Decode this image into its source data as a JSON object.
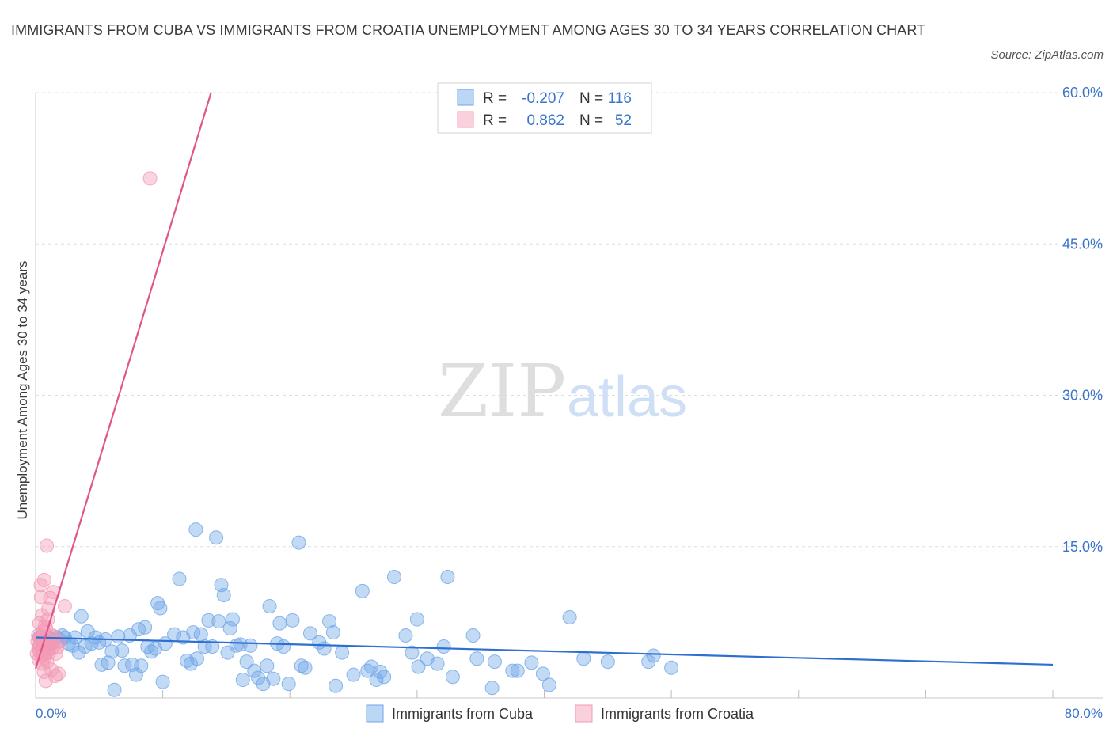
{
  "title": "IMMIGRANTS FROM CUBA VS IMMIGRANTS FROM CROATIA UNEMPLOYMENT AMONG AGES 30 TO 34 YEARS CORRELATION CHART",
  "source": "Source: ZipAtlas.com",
  "watermark": {
    "zip": "ZIP",
    "atlas": "atlas"
  },
  "colors": {
    "cuba": "#6fa6e8",
    "cuba_line": "#2f6fd0",
    "croatia": "#f29ab5",
    "croatia_line": "#e0558a",
    "tick_text": "#3a74c9",
    "grid": "#dddddd"
  },
  "legend": {
    "cuba": {
      "r_label": "R =",
      "r_value": "-0.207",
      "n_label": "N =",
      "n_value": "116"
    },
    "croatia": {
      "r_label": "R =",
      "r_value": "0.862",
      "n_label": "N =",
      "n_value": "52"
    }
  },
  "chart_data": {
    "type": "scatter",
    "ylabel": "Unemployment Among Ages 30 to 34 years",
    "xlabel": "",
    "xlim": [
      0,
      80
    ],
    "ylim": [
      0,
      60
    ],
    "x_tick_labels": [
      "0.0%",
      "80.0%"
    ],
    "y_ticks": [
      15,
      30,
      45,
      60
    ],
    "y_tick_labels": [
      "15.0%",
      "30.0%",
      "45.0%",
      "60.0%"
    ],
    "bottom_legend": [
      "Immigrants from Cuba",
      "Immigrants from Croatia"
    ],
    "series": [
      {
        "name": "Immigrants from Cuba",
        "r": -0.207,
        "n": 116,
        "trendline": {
          "x": [
            0,
            80
          ],
          "y": [
            6.0,
            3.3
          ]
        },
        "points": [
          [
            0.3,
            6.0
          ],
          [
            0.5,
            5.7
          ],
          [
            0.7,
            5.6
          ],
          [
            0.9,
            6.1
          ],
          [
            1.1,
            5.8
          ],
          [
            1.3,
            5.4
          ],
          [
            1.5,
            5.9
          ],
          [
            1.7,
            6.0
          ],
          [
            1.9,
            5.7
          ],
          [
            2.1,
            6.2
          ],
          [
            2.3,
            6.0
          ],
          [
            2.6,
            5.4
          ],
          [
            2.9,
            5.2
          ],
          [
            3.1,
            6.0
          ],
          [
            3.4,
            4.5
          ],
          [
            3.6,
            8.1
          ],
          [
            3.9,
            5.1
          ],
          [
            4.1,
            6.6
          ],
          [
            4.4,
            5.4
          ],
          [
            4.7,
            6.0
          ],
          [
            5.0,
            5.5
          ],
          [
            5.2,
            3.3
          ],
          [
            5.5,
            5.8
          ],
          [
            5.7,
            3.5
          ],
          [
            6.0,
            4.6
          ],
          [
            6.2,
            0.8
          ],
          [
            6.5,
            6.1
          ],
          [
            6.8,
            4.7
          ],
          [
            7.0,
            3.2
          ],
          [
            7.4,
            6.2
          ],
          [
            7.6,
            3.3
          ],
          [
            7.9,
            2.3
          ],
          [
            8.1,
            6.8
          ],
          [
            8.3,
            3.2
          ],
          [
            8.6,
            7.0
          ],
          [
            8.8,
            5.1
          ],
          [
            9.1,
            4.6
          ],
          [
            9.4,
            4.9
          ],
          [
            9.6,
            9.4
          ],
          [
            9.8,
            8.9
          ],
          [
            10.0,
            1.6
          ],
          [
            10.2,
            5.4
          ],
          [
            12.6,
            16.7
          ],
          [
            10.9,
            6.3
          ],
          [
            11.3,
            11.8
          ],
          [
            11.6,
            6.0
          ],
          [
            11.9,
            3.7
          ],
          [
            12.2,
            3.4
          ],
          [
            12.4,
            6.5
          ],
          [
            12.7,
            3.9
          ],
          [
            13.0,
            6.3
          ],
          [
            13.3,
            5.1
          ],
          [
            13.6,
            7.7
          ],
          [
            13.9,
            5.1
          ],
          [
            14.2,
            15.9
          ],
          [
            14.4,
            7.6
          ],
          [
            14.6,
            11.2
          ],
          [
            14.8,
            10.2
          ],
          [
            15.1,
            4.5
          ],
          [
            15.3,
            6.9
          ],
          [
            15.5,
            7.8
          ],
          [
            15.8,
            5.2
          ],
          [
            16.1,
            5.3
          ],
          [
            16.3,
            1.8
          ],
          [
            16.6,
            3.6
          ],
          [
            16.9,
            5.2
          ],
          [
            17.2,
            2.7
          ],
          [
            17.5,
            2.0
          ],
          [
            17.9,
            1.4
          ],
          [
            18.2,
            3.2
          ],
          [
            18.4,
            9.1
          ],
          [
            18.7,
            1.9
          ],
          [
            19.0,
            5.4
          ],
          [
            19.2,
            7.4
          ],
          [
            19.5,
            5.1
          ],
          [
            19.9,
            1.4
          ],
          [
            20.2,
            7.7
          ],
          [
            20.7,
            15.4
          ],
          [
            20.9,
            3.2
          ],
          [
            21.2,
            3.0
          ],
          [
            21.6,
            6.4
          ],
          [
            22.3,
            5.5
          ],
          [
            22.7,
            4.9
          ],
          [
            23.1,
            7.6
          ],
          [
            23.4,
            6.5
          ],
          [
            23.6,
            1.2
          ],
          [
            24.1,
            4.5
          ],
          [
            25.0,
            2.3
          ],
          [
            25.7,
            10.6
          ],
          [
            26.1,
            2.7
          ],
          [
            26.4,
            3.1
          ],
          [
            26.8,
            1.8
          ],
          [
            27.1,
            2.6
          ],
          [
            27.4,
            2.1
          ],
          [
            28.2,
            12.0
          ],
          [
            29.1,
            6.2
          ],
          [
            29.6,
            4.5
          ],
          [
            30.0,
            7.8
          ],
          [
            30.1,
            3.1
          ],
          [
            30.8,
            3.9
          ],
          [
            31.6,
            3.4
          ],
          [
            32.1,
            5.1
          ],
          [
            32.4,
            12.0
          ],
          [
            32.8,
            2.1
          ],
          [
            34.4,
            6.2
          ],
          [
            34.7,
            3.9
          ],
          [
            35.9,
            1.0
          ],
          [
            36.1,
            3.6
          ],
          [
            37.5,
            2.7
          ],
          [
            37.9,
            2.7
          ],
          [
            39.0,
            3.5
          ],
          [
            39.9,
            2.4
          ],
          [
            40.4,
            1.3
          ],
          [
            42.0,
            8.0
          ],
          [
            43.1,
            3.9
          ],
          [
            45.0,
            3.6
          ],
          [
            48.2,
            3.6
          ],
          [
            48.6,
            4.2
          ],
          [
            50.0,
            3.0
          ]
        ]
      },
      {
        "name": "Immigrants from Croatia",
        "r": 0.862,
        "n": 52,
        "trendline": {
          "x": [
            0,
            13.8
          ],
          "y": [
            2.9,
            60.0
          ]
        },
        "points": [
          [
            0.1,
            4.4
          ],
          [
            0.15,
            5.6
          ],
          [
            0.2,
            6.2
          ],
          [
            0.22,
            4.9
          ],
          [
            0.25,
            3.8
          ],
          [
            0.28,
            5.1
          ],
          [
            0.3,
            7.4
          ],
          [
            0.33,
            4.6
          ],
          [
            0.35,
            5.3
          ],
          [
            0.38,
            6.0
          ],
          [
            0.4,
            11.2
          ],
          [
            0.42,
            10.0
          ],
          [
            0.45,
            5.9
          ],
          [
            0.48,
            4.2
          ],
          [
            0.5,
            8.2
          ],
          [
            0.52,
            5.5
          ],
          [
            0.55,
            3.4
          ],
          [
            0.58,
            6.6
          ],
          [
            0.6,
            4.8
          ],
          [
            0.62,
            5.2
          ],
          [
            0.65,
            2.6
          ],
          [
            0.68,
            11.7
          ],
          [
            0.7,
            4.0
          ],
          [
            0.72,
            7.1
          ],
          [
            0.75,
            5.7
          ],
          [
            0.78,
            4.4
          ],
          [
            0.8,
            1.7
          ],
          [
            0.82,
            6.9
          ],
          [
            0.85,
            5.0
          ],
          [
            0.88,
            15.1
          ],
          [
            0.9,
            3.6
          ],
          [
            0.92,
            5.8
          ],
          [
            0.95,
            4.7
          ],
          [
            0.97,
            7.8
          ],
          [
            1.0,
            8.8
          ],
          [
            1.05,
            4.5
          ],
          [
            1.1,
            5.4
          ],
          [
            1.15,
            9.9
          ],
          [
            1.2,
            6.3
          ],
          [
            1.25,
            2.8
          ],
          [
            1.3,
            4.9
          ],
          [
            1.35,
            5.5
          ],
          [
            1.4,
            10.5
          ],
          [
            1.45,
            6.1
          ],
          [
            1.55,
            2.2
          ],
          [
            1.6,
            4.4
          ],
          [
            1.7,
            5.0
          ],
          [
            1.8,
            2.4
          ],
          [
            1.85,
            5.6
          ],
          [
            2.3,
            9.1
          ],
          [
            9.0,
            51.5
          ],
          [
            0.55,
            5.4
          ]
        ]
      }
    ]
  }
}
